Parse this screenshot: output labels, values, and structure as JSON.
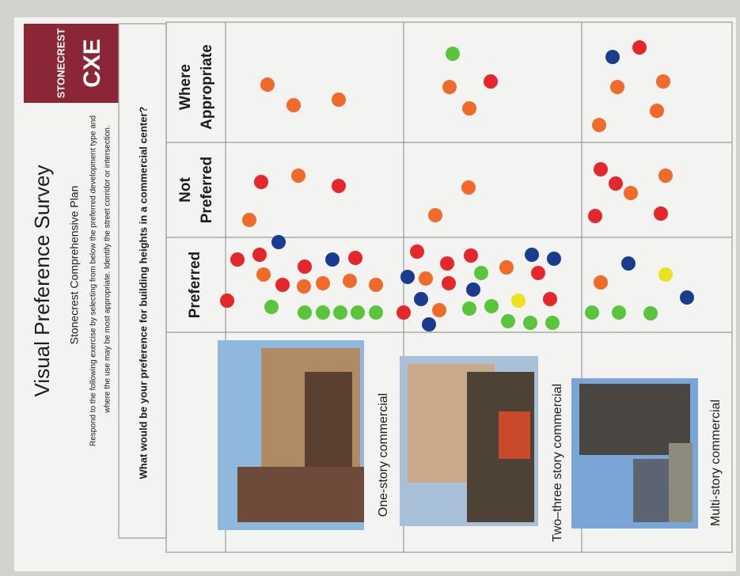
{
  "logo": {
    "name": "STONECREST",
    "mark": "CXE"
  },
  "header": {
    "title": "Visual Preference Survey",
    "subtitle": "Stonecrest Comprehensive Plan",
    "instructions": [
      "Respond to the following exercise by selecting from below the preferred development type and",
      "where the use may be most appropriate. Identify the street corridor or intersection."
    ]
  },
  "question": "What would be your preference for building heights in a commercial center?",
  "table": {
    "columns": [
      [
        "Preferred"
      ],
      [
        "Not",
        "Preferred"
      ],
      [
        "Where",
        "Appropriate"
      ]
    ],
    "rows": [
      "One-story commercial",
      "Two–three story commercial",
      "Multi-story commercial"
    ]
  }
}
